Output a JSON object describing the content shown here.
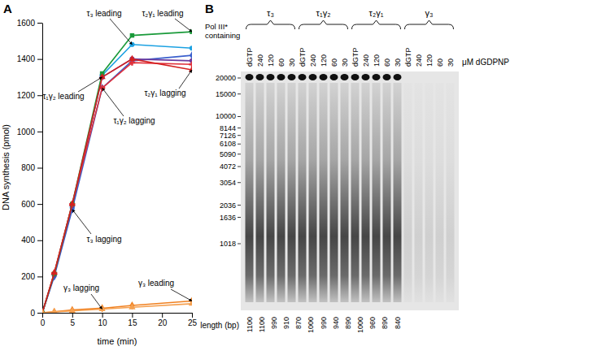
{
  "chart_data": [
    {
      "type": "line",
      "title": "A",
      "x_label": "time (min)",
      "y_label": "DNA synthesis (pmol)",
      "x": [
        0,
        2,
        5,
        10,
        15,
        25
      ],
      "xlim": [
        0,
        25
      ],
      "xticks": [
        0,
        5,
        10,
        15,
        20,
        25
      ],
      "ylim": [
        0,
        1600
      ],
      "yticks": [
        0,
        200,
        400,
        600,
        800,
        1000,
        1200,
        1400,
        1600
      ],
      "series": [
        {
          "name": "τ₃ leading",
          "color": "#1ba1e2",
          "marker": "circle",
          "values": [
            0,
            210,
            580,
            1310,
            1480,
            1460
          ]
        },
        {
          "name": "τ₃ lagging",
          "color": "#3a5fcd",
          "marker": "diamond",
          "values": [
            0,
            200,
            570,
            1240,
            1390,
            1420
          ]
        },
        {
          "name": "τ₁γ₂ leading",
          "color": "#6a3a9e",
          "marker": "circle",
          "values": [
            0,
            210,
            590,
            1300,
            1400,
            1390
          ]
        },
        {
          "name": "τ₁γ₂ lagging",
          "color": "#e0303a",
          "marker": "cross",
          "values": [
            0,
            220,
            600,
            1240,
            1380,
            1370
          ]
        },
        {
          "name": "τ₂γ₁ leading",
          "color": "#1a9a3a",
          "marker": "square",
          "values": [
            0,
            215,
            600,
            1320,
            1530,
            1550
          ]
        },
        {
          "name": "τ₂γ₁ lagging",
          "color": "#d42020",
          "marker": "triangle",
          "values": [
            0,
            220,
            600,
            1300,
            1400,
            1340
          ]
        },
        {
          "name": "γ₃ leading",
          "color": "#f08020",
          "marker": "diamond",
          "values": [
            0,
            5,
            15,
            25,
            40,
            65
          ]
        },
        {
          "name": "γ₃ lagging",
          "color": "#f5a050",
          "marker": "triangle",
          "values": [
            0,
            5,
            10,
            20,
            30,
            50
          ]
        }
      ]
    },
    {
      "type": "gel",
      "title": "B",
      "header": "Pol III* containing",
      "groups": [
        {
          "name": "τ₃",
          "lanes": [
            "dGTP",
            "240",
            "120",
            "60",
            "30"
          ]
        },
        {
          "name": "τ₁γ₂",
          "lanes": [
            "dGTP",
            "240",
            "120",
            "60",
            "30"
          ]
        },
        {
          "name": "τ₂γ₁",
          "lanes": [
            "dGTP",
            "240",
            "120",
            "60",
            "30"
          ]
        },
        {
          "name": "γ₃",
          "lanes": [
            "dGTP",
            "240",
            "120",
            "60",
            "30"
          ]
        }
      ],
      "unit_label": "μM dGDPNP",
      "markers": [
        20000,
        15000,
        10000,
        8144,
        7126,
        6108,
        5090,
        4072,
        3054,
        2036,
        1636,
        1018
      ],
      "length_label": "length (bp)",
      "lengths": [
        1100,
        1100,
        990,
        910,
        870,
        1000,
        990,
        940,
        890,
        1000,
        960,
        890,
        840
      ]
    }
  ]
}
